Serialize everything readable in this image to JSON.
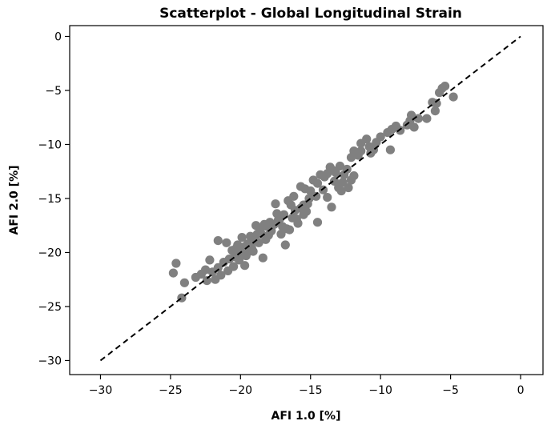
{
  "chart_data": {
    "type": "scatter",
    "title": "Scatterplot - Global Longitudinal Strain",
    "xlabel": "AFI 1.0 [%]",
    "ylabel": "AFI 2.0 [%]",
    "xlim": [
      -32.2,
      1.6
    ],
    "ylim": [
      -31.3,
      1.0
    ],
    "xticks": [
      -30,
      -25,
      -20,
      -15,
      -10,
      -5,
      0
    ],
    "yticks": [
      0,
      -5,
      -10,
      -15,
      -20,
      -25,
      -30
    ],
    "grid": false,
    "legend": "none",
    "point_color": "#808080",
    "reference_line": {
      "x": [
        -30,
        0
      ],
      "y": [
        -30,
        0
      ],
      "style": "dashed",
      "color": "#000000"
    },
    "points": [
      [
        -4.8,
        -5.6
      ],
      [
        -5.4,
        -4.6
      ],
      [
        -5.6,
        -4.8
      ],
      [
        -5.8,
        -5.2
      ],
      [
        -6.0,
        -6.2
      ],
      [
        -6.1,
        -6.9
      ],
      [
        -6.3,
        -6.1
      ],
      [
        -6.7,
        -7.6
      ],
      [
        -7.3,
        -7.6
      ],
      [
        -7.6,
        -8.4
      ],
      [
        -7.9,
        -7.8
      ],
      [
        -8.1,
        -8.2
      ],
      [
        -8.6,
        -8.7
      ],
      [
        -8.9,
        -8.3
      ],
      [
        -9.2,
        -8.6
      ],
      [
        -9.5,
        -8.9
      ],
      [
        -10.0,
        -9.3
      ],
      [
        -10.3,
        -9.8
      ],
      [
        -10.5,
        -10.5
      ],
      [
        -10.8,
        -10.2
      ],
      [
        -11.0,
        -9.5
      ],
      [
        -11.4,
        -10.6
      ],
      [
        -11.6,
        -11.0
      ],
      [
        -11.9,
        -10.6
      ],
      [
        -11.9,
        -12.9
      ],
      [
        -12.1,
        -13.3
      ],
      [
        -12.3,
        -14.0
      ],
      [
        -12.4,
        -12.3
      ],
      [
        -12.6,
        -12.8
      ],
      [
        -12.7,
        -13.5
      ],
      [
        -12.8,
        -14.3
      ],
      [
        -12.9,
        -12.0
      ],
      [
        -13.0,
        -14.0
      ],
      [
        -13.2,
        -12.6
      ],
      [
        -13.3,
        -13.4
      ],
      [
        -13.4,
        -12.4
      ],
      [
        -13.6,
        -12.1
      ],
      [
        -13.8,
        -12.7
      ],
      [
        -14.0,
        -13.0
      ],
      [
        -14.1,
        -14.2
      ],
      [
        -14.3,
        -12.8
      ],
      [
        -14.5,
        -13.6
      ],
      [
        -14.6,
        -14.8
      ],
      [
        -14.8,
        -13.3
      ],
      [
        -15.0,
        -14.3
      ],
      [
        -15.1,
        -15.0
      ],
      [
        -15.2,
        -15.5
      ],
      [
        -15.4,
        -14.1
      ],
      [
        -15.5,
        -15.6
      ],
      [
        -15.5,
        -16.5
      ],
      [
        -15.7,
        -15.9
      ],
      [
        -15.7,
        -13.9
      ],
      [
        -15.9,
        -17.3
      ],
      [
        -16.0,
        -16.9
      ],
      [
        -16.1,
        -16.1
      ],
      [
        -16.2,
        -14.8
      ],
      [
        -16.3,
        -16.8
      ],
      [
        -16.4,
        -15.6
      ],
      [
        -16.6,
        -15.2
      ],
      [
        -16.7,
        -17.8
      ],
      [
        -16.9,
        -16.5
      ],
      [
        -17.0,
        -17.6
      ],
      [
        -17.1,
        -18.3
      ],
      [
        -17.3,
        -17.0
      ],
      [
        -17.4,
        -16.4
      ],
      [
        -17.5,
        -15.5
      ],
      [
        -17.6,
        -17.4
      ],
      [
        -17.8,
        -18.0
      ],
      [
        -17.9,
        -17.2
      ],
      [
        -18.0,
        -18.4
      ],
      [
        -18.1,
        -17.6
      ],
      [
        -18.2,
        -18.8
      ],
      [
        -18.3,
        -17.4
      ],
      [
        -18.5,
        -18.3
      ],
      [
        -18.6,
        -17.9
      ],
      [
        -18.7,
        -19.1
      ],
      [
        -18.8,
        -18.3
      ],
      [
        -18.9,
        -17.5
      ],
      [
        -19.0,
        -18.9
      ],
      [
        -19.2,
        -19.6
      ],
      [
        -19.3,
        -18.5
      ],
      [
        -19.4,
        -19.9
      ],
      [
        -19.5,
        -19.2
      ],
      [
        -19.6,
        -20.3
      ],
      [
        -19.8,
        -19.5
      ],
      [
        -19.9,
        -18.6
      ],
      [
        -20.0,
        -20.1
      ],
      [
        -20.1,
        -20.7
      ],
      [
        -20.2,
        -19.3
      ],
      [
        -20.4,
        -20.4
      ],
      [
        -20.5,
        -21.3
      ],
      [
        -20.6,
        -19.8
      ],
      [
        -20.8,
        -20.6
      ],
      [
        -20.9,
        -21.7
      ],
      [
        -21.0,
        -19.1
      ],
      [
        -21.2,
        -20.9
      ],
      [
        -21.4,
        -22.1
      ],
      [
        -21.6,
        -21.4
      ],
      [
        -21.8,
        -22.5
      ],
      [
        -22.0,
        -21.8
      ],
      [
        -22.2,
        -20.7
      ],
      [
        -22.5,
        -21.6
      ],
      [
        -22.8,
        -22.0
      ],
      [
        -23.2,
        -22.3
      ],
      [
        -24.0,
        -22.8
      ],
      [
        -24.2,
        -24.2
      ],
      [
        -24.6,
        -21.0
      ],
      [
        -24.8,
        -21.9
      ],
      [
        -21.6,
        -18.9
      ],
      [
        -13.5,
        -15.8
      ],
      [
        -11.4,
        -9.9
      ],
      [
        -9.3,
        -10.5
      ],
      [
        -7.8,
        -7.3
      ],
      [
        -14.5,
        -17.2
      ],
      [
        -16.8,
        -19.3
      ],
      [
        -18.4,
        -20.5
      ],
      [
        -19.7,
        -21.2
      ],
      [
        -22.4,
        -22.6
      ],
      [
        -12.1,
        -11.2
      ],
      [
        -10.7,
        -10.8
      ],
      [
        -15.3,
        -16.2
      ],
      [
        -17.2,
        -16.9
      ],
      [
        -20.3,
        -19.6
      ],
      [
        -13.8,
        -14.9
      ],
      [
        -16.5,
        -17.9
      ],
      [
        -19.1,
        -19.9
      ]
    ]
  }
}
